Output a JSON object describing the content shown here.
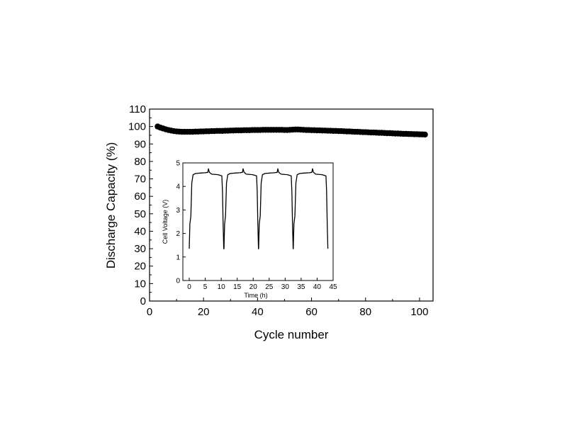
{
  "chart_data": [
    {
      "id": "main",
      "type": "scatter",
      "title": "",
      "xlabel": "Cycle number",
      "ylabel": "Discharge Capacity (%)",
      "xlim": [
        0,
        105
      ],
      "ylim": [
        0,
        110
      ],
      "xticks": [
        0,
        20,
        40,
        60,
        80,
        100
      ],
      "yticks": [
        0,
        10,
        20,
        30,
        40,
        50,
        60,
        70,
        80,
        90,
        100,
        110
      ],
      "grid": false,
      "legend": "none",
      "marker_color": "#000000",
      "series": [
        {
          "x": [
            3,
            4,
            5,
            6,
            7,
            8,
            9,
            10,
            11,
            12,
            13,
            14,
            15,
            16,
            17,
            18,
            19,
            20,
            21,
            22,
            23,
            24,
            25,
            26,
            27,
            28,
            29,
            30,
            31,
            32,
            33,
            34,
            35,
            36,
            37,
            38,
            39,
            40,
            41,
            42,
            43,
            44,
            45,
            46,
            47,
            48,
            49,
            50,
            51,
            52,
            53,
            54,
            55,
            56,
            57,
            58,
            59,
            60,
            61,
            62,
            63,
            64,
            65,
            66,
            67,
            68,
            69,
            70,
            71,
            72,
            73,
            74,
            75,
            76,
            77,
            78,
            79,
            80,
            81,
            82,
            83,
            84,
            85,
            86,
            87,
            88,
            89,
            90,
            91,
            92,
            93,
            94,
            95,
            96,
            97,
            98,
            99,
            100,
            101,
            102
          ],
          "y": [
            100.0,
            99.4,
            98.9,
            98.4,
            98.0,
            97.7,
            97.4,
            97.2,
            97.1,
            97.0,
            97.0,
            97.0,
            97.0,
            97.0,
            97.1,
            97.1,
            97.2,
            97.2,
            97.3,
            97.3,
            97.4,
            97.4,
            97.5,
            97.5,
            97.5,
            97.6,
            97.6,
            97.7,
            97.7,
            97.8,
            97.8,
            97.8,
            97.9,
            97.9,
            97.9,
            98.0,
            98.0,
            98.0,
            98.0,
            98.1,
            98.1,
            98.1,
            98.1,
            98.1,
            98.1,
            98.1,
            98.1,
            98.0,
            98.0,
            98.1,
            98.2,
            98.3,
            98.3,
            98.2,
            98.1,
            98.0,
            98.0,
            97.9,
            97.9,
            97.8,
            97.8,
            97.7,
            97.7,
            97.6,
            97.6,
            97.5,
            97.5,
            97.4,
            97.4,
            97.3,
            97.2,
            97.2,
            97.1,
            97.0,
            97.0,
            96.9,
            96.8,
            96.8,
            96.7,
            96.6,
            96.6,
            96.5,
            96.4,
            96.4,
            96.3,
            96.2,
            96.2,
            96.1,
            96.0,
            96.0,
            95.9,
            95.8,
            95.8,
            95.7,
            95.7,
            95.6,
            95.6,
            95.5,
            95.5,
            95.4
          ]
        }
      ]
    },
    {
      "id": "inset",
      "type": "line",
      "title": "",
      "xlabel": "Time (h)",
      "ylabel": "Cell Voltage (V)",
      "xlim": [
        -2,
        45
      ],
      "ylim": [
        0,
        5
      ],
      "xticks": [
        0,
        5,
        10,
        15,
        20,
        25,
        30,
        35,
        40,
        45
      ],
      "yticks": [
        0,
        1,
        2,
        3,
        4,
        5
      ],
      "grid": false,
      "legend": "none",
      "line_color": "#000000",
      "series": [
        {
          "x": [
            0,
            0.2,
            0.5,
            0.8,
            1.2,
            2,
            3.5,
            5,
            5.8,
            6,
            6.3,
            7,
            9,
            10.2,
            10.4,
            10.6,
            10.8,
            10.85,
            11.05,
            11.35,
            11.65,
            12.05,
            12.85,
            14.35,
            15.85,
            16.65,
            16.85,
            17.15,
            17.85,
            19.85,
            21.05,
            21.25,
            21.45,
            21.65,
            21.7,
            21.9,
            22.2,
            22.5,
            22.9,
            23.7,
            25.2,
            26.7,
            27.5,
            27.7,
            28.0,
            28.7,
            30.7,
            31.9,
            32.1,
            32.3,
            32.5,
            32.55,
            32.75,
            33.05,
            33.35,
            33.75,
            34.55,
            36.05,
            37.55,
            38.35,
            38.55,
            38.85,
            39.55,
            41.55,
            42.75,
            42.95,
            43.15,
            43.35
          ],
          "y": [
            1.35,
            2.4,
            2.75,
            4.15,
            4.5,
            4.55,
            4.57,
            4.58,
            4.6,
            4.75,
            4.6,
            4.52,
            4.5,
            4.45,
            3.8,
            2.4,
            1.35,
            1.35,
            2.4,
            2.75,
            4.15,
            4.5,
            4.55,
            4.57,
            4.58,
            4.6,
            4.75,
            4.6,
            4.52,
            4.5,
            4.45,
            3.8,
            2.4,
            1.35,
            1.35,
            2.4,
            2.75,
            4.15,
            4.5,
            4.55,
            4.57,
            4.58,
            4.6,
            4.75,
            4.6,
            4.52,
            4.5,
            4.45,
            3.8,
            2.4,
            1.35,
            1.35,
            2.4,
            2.75,
            4.15,
            4.5,
            4.55,
            4.57,
            4.58,
            4.6,
            4.75,
            4.6,
            4.52,
            4.5,
            4.45,
            3.8,
            2.4,
            1.35
          ]
        }
      ]
    }
  ]
}
